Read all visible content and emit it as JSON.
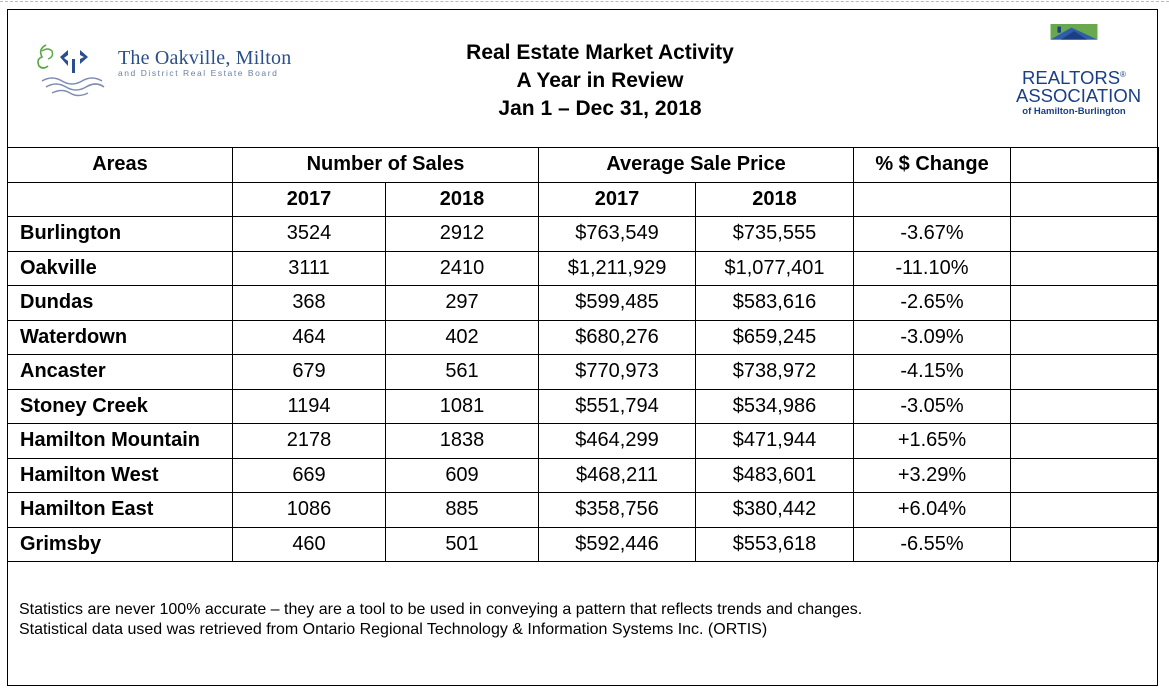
{
  "header": {
    "org_left": {
      "name": "The Oakville, Milton",
      "subtitle": "and District Real Estate Board"
    },
    "title_lines": [
      "Real Estate Market Activity",
      "A Year in Review",
      "Jan 1 – Dec 31, 2018"
    ],
    "org_right": {
      "line1": "REALTORS",
      "reg_mark": "®",
      "line2": "ASSOCIATION",
      "line3": "of Hamilton-Burlington",
      "colors": {
        "green": "#6aa84f",
        "blue": "#1b3f85",
        "teal": "#2e5ea8"
      }
    },
    "logo_left_colors": {
      "green": "#5aa544",
      "navy": "#2a4f8c",
      "wave": "#7f8db0"
    }
  },
  "table": {
    "headers": {
      "areas": "Areas",
      "sales": "Number of Sales",
      "price": "Average Sale Price",
      "change": "% $ Change",
      "years": [
        "2017",
        "2018",
        "2017",
        "2018"
      ]
    },
    "rows": [
      {
        "area": "Burlington",
        "s2017": "3524",
        "s2018": "2912",
        "p2017": "$763,549",
        "p2018": "$735,555",
        "change": "-3.67%"
      },
      {
        "area": "Oakville",
        "s2017": "3111",
        "s2018": "2410",
        "p2017": "$1,211,929",
        "p2018": "$1,077,401",
        "change": "-11.10%"
      },
      {
        "area": "Dundas",
        "s2017": "368",
        "s2018": "297",
        "p2017": "$599,485",
        "p2018": "$583,616",
        "change": "-2.65%"
      },
      {
        "area": "Waterdown",
        "s2017": "464",
        "s2018": "402",
        "p2017": "$680,276",
        "p2018": "$659,245",
        "change": "-3.09%"
      },
      {
        "area": "Ancaster",
        "s2017": "679",
        "s2018": "561",
        "p2017": "$770,973",
        "p2018": "$738,972",
        "change": "-4.15%"
      },
      {
        "area": "Stoney Creek",
        "s2017": "1194",
        "s2018": "1081",
        "p2017": "$551,794",
        "p2018": "$534,986",
        "change": "-3.05%"
      },
      {
        "area": "Hamilton Mountain",
        "s2017": "2178",
        "s2018": "1838",
        "p2017": "$464,299",
        "p2018": "$471,944",
        "change": "+1.65%"
      },
      {
        "area": "Hamilton West",
        "s2017": "669",
        "s2018": "609",
        "p2017": "$468,211",
        "p2018": "$483,601",
        "change": "+3.29%"
      },
      {
        "area": "Hamilton East",
        "s2017": "1086",
        "s2018": "885",
        "p2017": "$358,756",
        "p2018": "$380,442",
        "change": "+6.04%"
      },
      {
        "area": "Grimsby",
        "s2017": "460",
        "s2018": "501",
        "p2017": "$592,446",
        "p2018": "$553,618",
        "change": "-6.55%"
      }
    ]
  },
  "footer": {
    "line1": "Statistics are never 100% accurate – they are a tool to be used in conveying a pattern that reflects trends and changes.",
    "line2": "Statistical data used was retrieved from Ontario Regional Technology & Information Systems Inc. (ORTIS)"
  }
}
